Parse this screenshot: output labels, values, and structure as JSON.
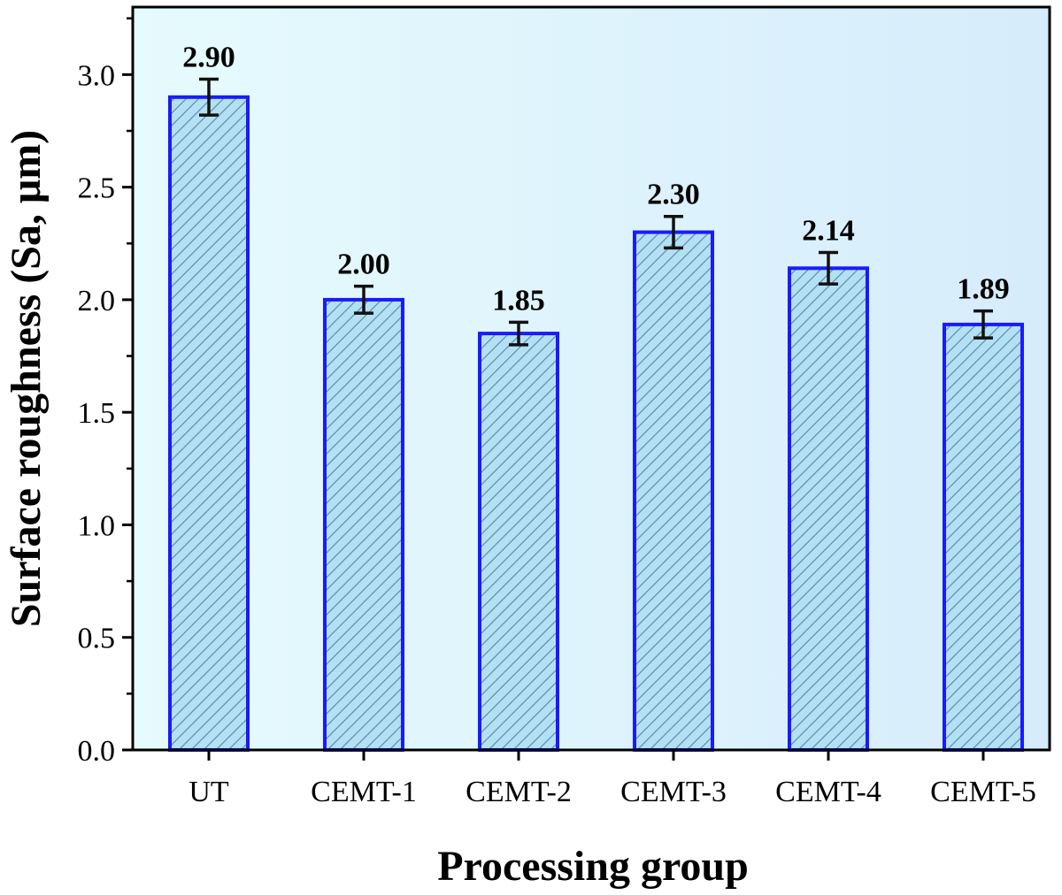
{
  "chart_data": {
    "type": "bar",
    "title": "",
    "xlabel": "Processing group",
    "ylabel": "Surface roughness (Sa, μm)",
    "categories": [
      "UT",
      "CEMT-1",
      "CEMT-2",
      "CEMT-3",
      "CEMT-4",
      "CEMT-5"
    ],
    "values": [
      2.9,
      2.0,
      1.85,
      2.3,
      2.14,
      1.89
    ],
    "value_labels": [
      "2.90",
      "2.00",
      "1.85",
      "2.30",
      "2.14",
      "1.89"
    ],
    "errors": [
      0.08,
      0.06,
      0.05,
      0.07,
      0.07,
      0.06
    ],
    "ylim": [
      0,
      3.3
    ],
    "yticks": [
      0.0,
      0.5,
      1.0,
      1.5,
      2.0,
      2.5,
      3.0
    ],
    "ytick_labels": [
      "0.0",
      "0.5",
      "1.0",
      "1.5",
      "2.0",
      "2.5",
      "3.0"
    ],
    "grid": false,
    "colors": {
      "bar_fill": "#b3e0f2",
      "bar_edge": "#1a1aff",
      "hatch": "#5b8fb0",
      "error_bar": "#111111",
      "background_left": "#e6fbfd",
      "background_right": "#d6ecfb",
      "axis": "#000000"
    }
  }
}
